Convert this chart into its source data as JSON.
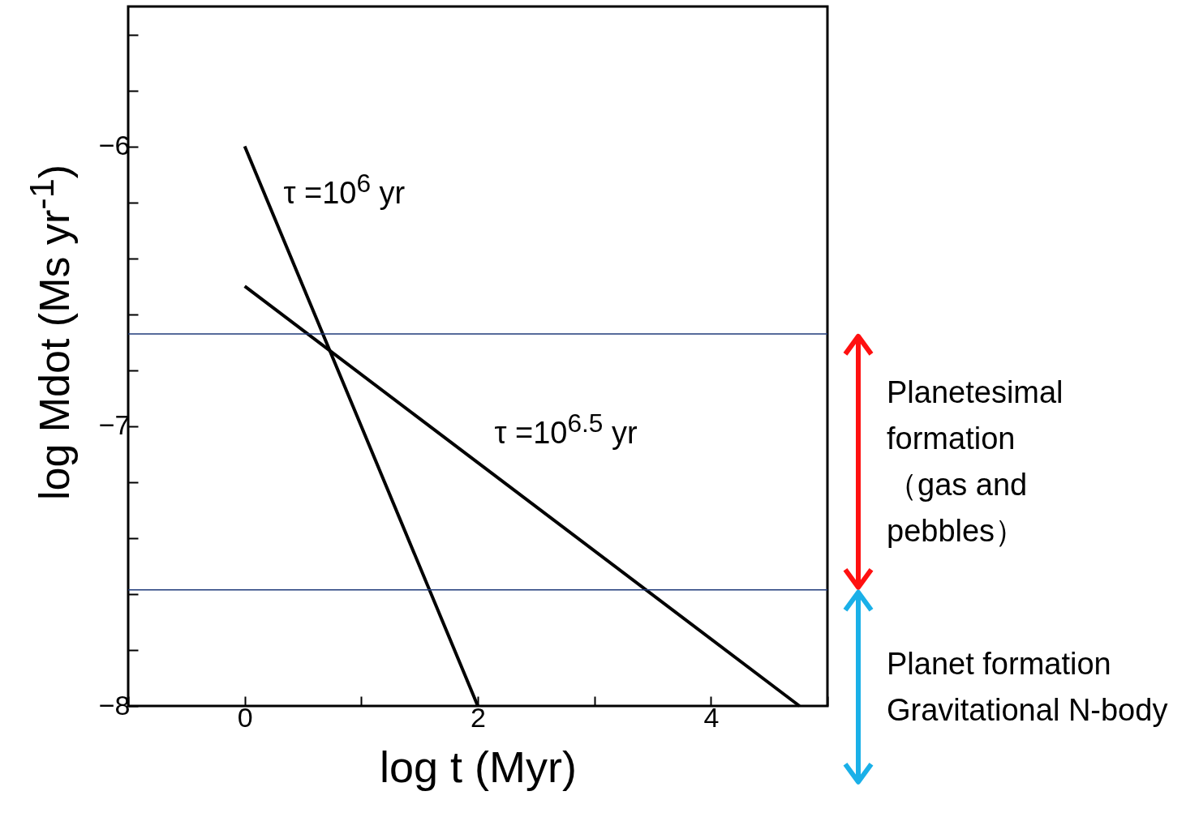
{
  "chart_data": {
    "type": "line",
    "xlabel": "log t (Myr)",
    "ylabel": "log Mdot (Ms yr$^{-1}$)",
    "series": [
      {
        "name": "τ =10$^{6}$ yr",
        "color": "#000000",
        "x": [
          0,
          2
        ],
        "values": [
          -6,
          -8
        ]
      },
      {
        "name": "τ =10$^{6.5}$ yr",
        "color": "#000000",
        "x": [
          0,
          4.76
        ],
        "values": [
          -6.5,
          -8
        ]
      }
    ],
    "xlim": [
      -1,
      5
    ],
    "ylim": [
      -8,
      -5.5
    ],
    "xticks": [
      {
        "value": -1,
        "label": null
      },
      0,
      {
        "value": 1,
        "label": null
      },
      2,
      {
        "value": 3,
        "label": null
      },
      4,
      {
        "value": 5,
        "label": null
      }
    ],
    "yticks": [
      -8,
      {
        "value": -7.8,
        "label": null
      },
      {
        "value": -7.6,
        "label": null
      },
      {
        "value": -7.4,
        "label": null
      },
      {
        "value": -7.2,
        "label": null
      },
      -7,
      {
        "value": -6.8,
        "label": null
      },
      {
        "value": -6.6,
        "label": null
      },
      {
        "value": -6.4,
        "label": null
      },
      {
        "value": -6.2,
        "label": null
      },
      -6,
      {
        "value": -5.8,
        "label": null
      },
      {
        "value": -5.6,
        "label": null
      }
    ],
    "ref_lines": [
      {
        "axis": "y",
        "value": -6.67,
        "color": "#1f3a7a"
      },
      {
        "axis": "y",
        "value": -7.585,
        "color": "#1f3a7a"
      }
    ],
    "annotations": [
      "Planetesimal formation\n（gas and pebbles）",
      "Planet formation Gravitational N-body"
    ],
    "grid": false,
    "marker": "none",
    "line_style": "solid"
  }
}
